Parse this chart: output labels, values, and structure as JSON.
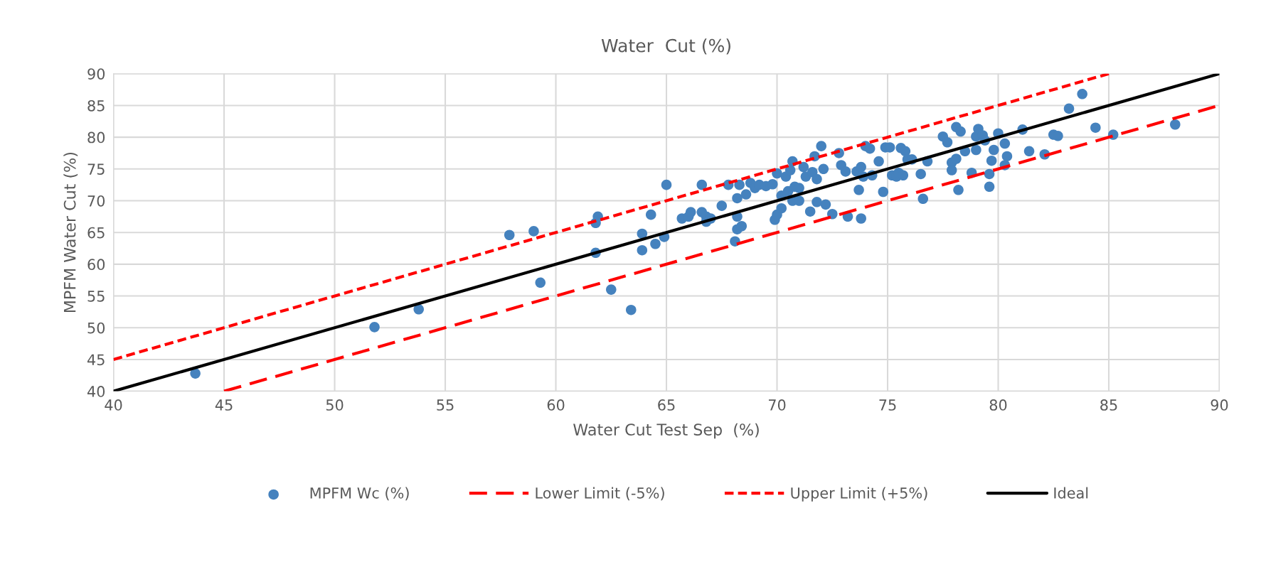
{
  "chart_data": {
    "type": "scatter",
    "title": "Water  Cut (%)",
    "xlabel": "Water Cut Test Sep  (%)",
    "ylabel": "MPFM Water Cut (%)",
    "xlim": [
      40,
      90
    ],
    "xticks": [
      40,
      45,
      50,
      55,
      60,
      65,
      70,
      75,
      80,
      85,
      90
    ],
    "ylim": [
      40,
      90
    ],
    "yticks": [
      40,
      45,
      50,
      55,
      60,
      65,
      70,
      75,
      80,
      85,
      90
    ],
    "grid": true,
    "legend": "bottom",
    "series": [
      {
        "name": "MPFM Wc (%)",
        "marker": "circle",
        "color": "#4582be",
        "x": [
          43.7,
          51.8,
          53.8,
          57.9,
          59.0,
          59.3,
          61.8,
          61.9,
          61.8,
          62.5,
          63.4,
          63.9,
          63.9,
          64.3,
          64.5,
          64.9,
          65.0,
          65.7,
          66.0,
          66.1,
          66.6,
          66.6,
          66.8,
          66.8,
          67.0,
          67.5,
          67.8,
          68.2,
          68.2,
          68.2,
          68.1,
          68.4,
          68.3,
          68.6,
          68.8,
          69.0,
          69.2,
          69.5,
          69.8,
          70.0,
          69.9,
          70.0,
          70.2,
          70.2,
          70.4,
          70.5,
          70.6,
          70.7,
          70.8,
          70.7,
          71.0,
          71.0,
          71.2,
          71.3,
          71.5,
          71.6,
          71.7,
          71.8,
          71.8,
          72.0,
          72.1,
          72.2,
          72.5,
          72.8,
          72.9,
          73.1,
          73.2,
          73.6,
          73.7,
          73.8,
          73.8,
          73.9,
          74.0,
          74.2,
          74.3,
          74.6,
          74.8,
          74.9,
          75.1,
          75.2,
          75.4,
          75.5,
          75.6,
          75.8,
          75.7,
          75.9,
          76.1,
          76.5,
          76.6,
          76.8,
          77.5,
          77.7,
          77.9,
          77.9,
          78.1,
          78.1,
          78.3,
          78.2,
          78.5,
          78.8,
          79.0,
          79.1,
          79.0,
          79.3,
          79.4,
          79.6,
          79.6,
          79.7,
          79.8,
          80.0,
          80.3,
          80.3,
          80.4,
          81.1,
          81.4,
          82.1,
          82.5,
          82.7,
          83.2,
          83.8,
          84.4,
          85.2,
          88.0
        ],
        "values": [
          42.8,
          50.1,
          52.9,
          64.6,
          65.2,
          57.1,
          66.5,
          67.5,
          61.8,
          56.0,
          52.8,
          64.8,
          62.2,
          67.8,
          63.2,
          64.3,
          72.5,
          67.2,
          67.5,
          68.2,
          72.5,
          68.2,
          67.5,
          66.7,
          67.2,
          69.2,
          72.5,
          70.4,
          67.5,
          65.5,
          63.6,
          66.0,
          72.5,
          71.0,
          72.8,
          72.0,
          72.5,
          72.3,
          72.6,
          74.3,
          67.0,
          67.8,
          68.8,
          70.8,
          73.8,
          71.5,
          74.8,
          76.2,
          72.2,
          70.0,
          70.0,
          72.0,
          75.3,
          73.8,
          68.3,
          74.5,
          77.0,
          73.4,
          69.8,
          78.6,
          75.0,
          69.4,
          67.9,
          77.5,
          75.6,
          74.6,
          67.5,
          74.6,
          71.7,
          75.3,
          67.2,
          73.8,
          78.6,
          78.2,
          74.0,
          76.2,
          71.4,
          78.4,
          78.4,
          74.0,
          73.8,
          74.4,
          78.3,
          77.8,
          74.0,
          76.5,
          76.5,
          74.2,
          70.3,
          76.2,
          80.1,
          79.2,
          76.0,
          74.8,
          76.6,
          81.6,
          80.9,
          71.7,
          77.8,
          74.4,
          80.1,
          81.3,
          78.0,
          80.3,
          79.5,
          74.2,
          72.2,
          76.3,
          78.0,
          80.6,
          79.0,
          75.6,
          77.0,
          81.2,
          77.8,
          77.3,
          80.4,
          80.2,
          84.5,
          86.8,
          81.5,
          80.4,
          82.0
        ]
      },
      {
        "name": "Lower Limit (-5%)",
        "type": "line",
        "line_style": "dashed",
        "marker": "none",
        "color": "#ff0000",
        "x": [
          45,
          90
        ],
        "values": [
          40,
          85
        ]
      },
      {
        "name": "Upper Limit (+5%)",
        "type": "line",
        "line_style": "dotted",
        "marker": "none",
        "color": "#ff0000",
        "x": [
          40,
          85
        ],
        "values": [
          45,
          90
        ]
      },
      {
        "name": "Ideal",
        "type": "line",
        "line_style": "solid",
        "marker": "none",
        "color": "#000000",
        "x": [
          40,
          90
        ],
        "values": [
          40,
          90
        ]
      }
    ]
  }
}
